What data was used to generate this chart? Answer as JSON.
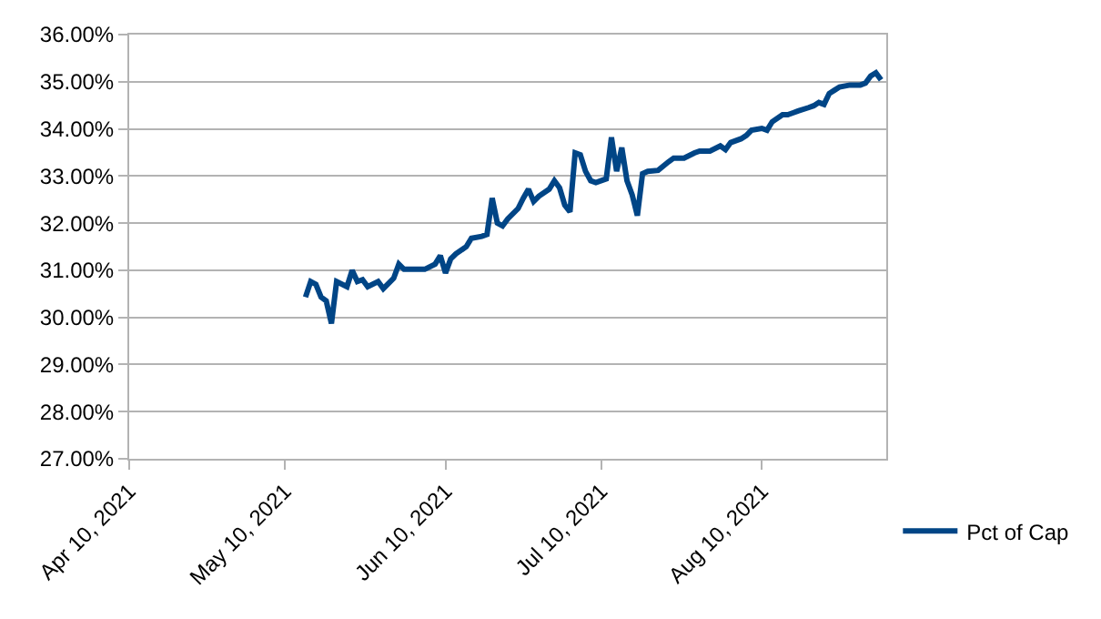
{
  "chart_data": {
    "type": "line",
    "x": [
      "2021-05-14",
      "2021-05-15",
      "2021-05-16",
      "2021-05-17",
      "2021-05-18",
      "2021-05-19",
      "2021-05-20",
      "2021-05-22",
      "2021-05-23",
      "2021-05-24",
      "2021-05-25",
      "2021-05-26",
      "2021-05-28",
      "2021-05-29",
      "2021-05-30",
      "2021-05-31",
      "2021-06-01",
      "2021-06-02",
      "2021-06-05",
      "2021-06-06",
      "2021-06-08",
      "2021-06-09",
      "2021-06-10",
      "2021-06-11",
      "2021-06-12",
      "2021-06-14",
      "2021-06-15",
      "2021-06-17",
      "2021-06-18",
      "2021-06-19",
      "2021-06-20",
      "2021-06-21",
      "2021-06-22",
      "2021-06-24",
      "2021-06-25",
      "2021-06-26",
      "2021-06-27",
      "2021-06-28",
      "2021-06-30",
      "2021-07-01",
      "2021-07-02",
      "2021-07-03",
      "2021-07-04",
      "2021-07-05",
      "2021-07-06",
      "2021-07-07",
      "2021-07-08",
      "2021-07-09",
      "2021-07-11",
      "2021-07-12",
      "2021-07-13",
      "2021-07-14",
      "2021-07-15",
      "2021-07-16",
      "2021-07-17",
      "2021-07-18",
      "2021-07-19",
      "2021-07-21",
      "2021-07-23",
      "2021-07-24",
      "2021-07-26",
      "2021-07-28",
      "2021-07-29",
      "2021-07-31",
      "2021-08-02",
      "2021-08-03",
      "2021-08-04",
      "2021-08-06",
      "2021-08-07",
      "2021-08-08",
      "2021-08-10",
      "2021-08-11",
      "2021-08-12",
      "2021-08-14",
      "2021-08-15",
      "2021-08-16",
      "2021-08-17",
      "2021-08-19",
      "2021-08-20",
      "2021-08-21",
      "2021-08-22",
      "2021-08-23",
      "2021-08-24",
      "2021-08-25",
      "2021-08-27",
      "2021-08-29",
      "2021-08-30",
      "2021-08-31",
      "2021-09-01",
      "2021-09-02"
    ],
    "series": [
      {
        "name": "Pct of Cap",
        "color": "#004586",
        "values": [
          30.43,
          30.76,
          30.7,
          30.43,
          30.35,
          29.87,
          30.76,
          30.65,
          31.0,
          30.76,
          30.8,
          30.65,
          30.76,
          30.61,
          30.72,
          30.83,
          31.13,
          31.02,
          31.02,
          31.02,
          31.13,
          31.31,
          30.94,
          31.24,
          31.35,
          31.5,
          31.68,
          31.72,
          31.76,
          32.53,
          32.0,
          31.94,
          32.09,
          32.31,
          32.53,
          32.72,
          32.46,
          32.57,
          32.72,
          32.9,
          32.75,
          32.38,
          32.24,
          33.49,
          33.45,
          33.1,
          32.9,
          32.86,
          32.94,
          33.82,
          33.1,
          33.6,
          32.9,
          32.6,
          32.16,
          33.05,
          33.1,
          33.12,
          33.3,
          33.38,
          33.38,
          33.49,
          33.53,
          33.53,
          33.64,
          33.56,
          33.71,
          33.79,
          33.86,
          33.97,
          34.01,
          33.97,
          34.15,
          34.3,
          34.3,
          34.34,
          34.38,
          34.45,
          34.49,
          34.56,
          34.52,
          34.75,
          34.82,
          34.89,
          34.93,
          34.93,
          34.97,
          35.12,
          35.19,
          35.04
        ]
      }
    ],
    "xlim": [
      "2021-04-10",
      "2021-09-03"
    ],
    "xticks": [
      {
        "value": "2021-04-10",
        "label": "Apr 10, 2021"
      },
      {
        "value": "2021-05-10",
        "label": "May 10, 2021"
      },
      {
        "value": "2021-06-10",
        "label": "Jun 10, 2021"
      },
      {
        "value": "2021-07-10",
        "label": "Jul 10, 2021"
      },
      {
        "value": "2021-08-10",
        "label": "Aug 10, 2021"
      }
    ],
    "ylim": [
      27,
      36
    ],
    "yticks": [
      {
        "value": 27,
        "label": "27.00%"
      },
      {
        "value": 28,
        "label": "28.00%"
      },
      {
        "value": 29,
        "label": "29.00%"
      },
      {
        "value": 30,
        "label": "30.00%"
      },
      {
        "value": 31,
        "label": "31.00%"
      },
      {
        "value": 32,
        "label": "32.00%"
      },
      {
        "value": 33,
        "label": "33.00%"
      },
      {
        "value": 34,
        "label": "34.00%"
      },
      {
        "value": 35,
        "label": "35.00%"
      },
      {
        "value": 36,
        "label": "36.00%"
      }
    ],
    "grid": "y",
    "legend": "right",
    "marker": "none",
    "line_style": "solid"
  }
}
